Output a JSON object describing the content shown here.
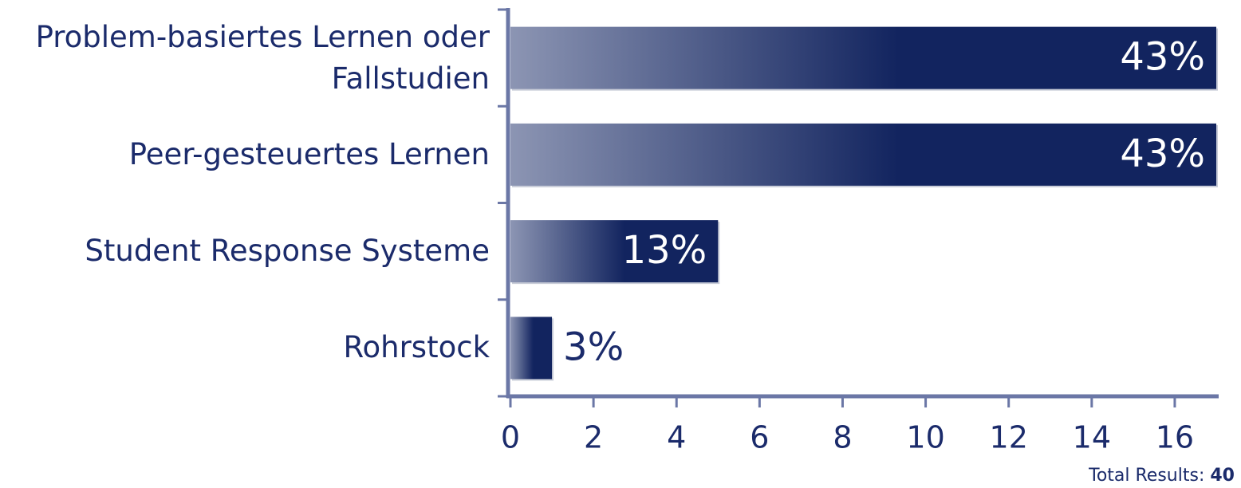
{
  "chart_data": {
    "type": "barh",
    "categories": [
      "Problem-basiertes Lernen oder Fallstudien",
      "Peer-gesteuertes Lernen",
      "Student Response Systeme",
      "Rohrstock"
    ],
    "values": [
      17,
      17,
      5,
      1
    ],
    "shares": [
      "43%",
      "43%",
      "13%",
      "3%"
    ],
    "color": "#12245f",
    "xlim": [
      0,
      17
    ],
    "xticks": [
      0,
      2,
      4,
      6,
      8,
      10,
      12,
      14,
      16
    ],
    "total_label": "Total Results:",
    "total": 40
  }
}
